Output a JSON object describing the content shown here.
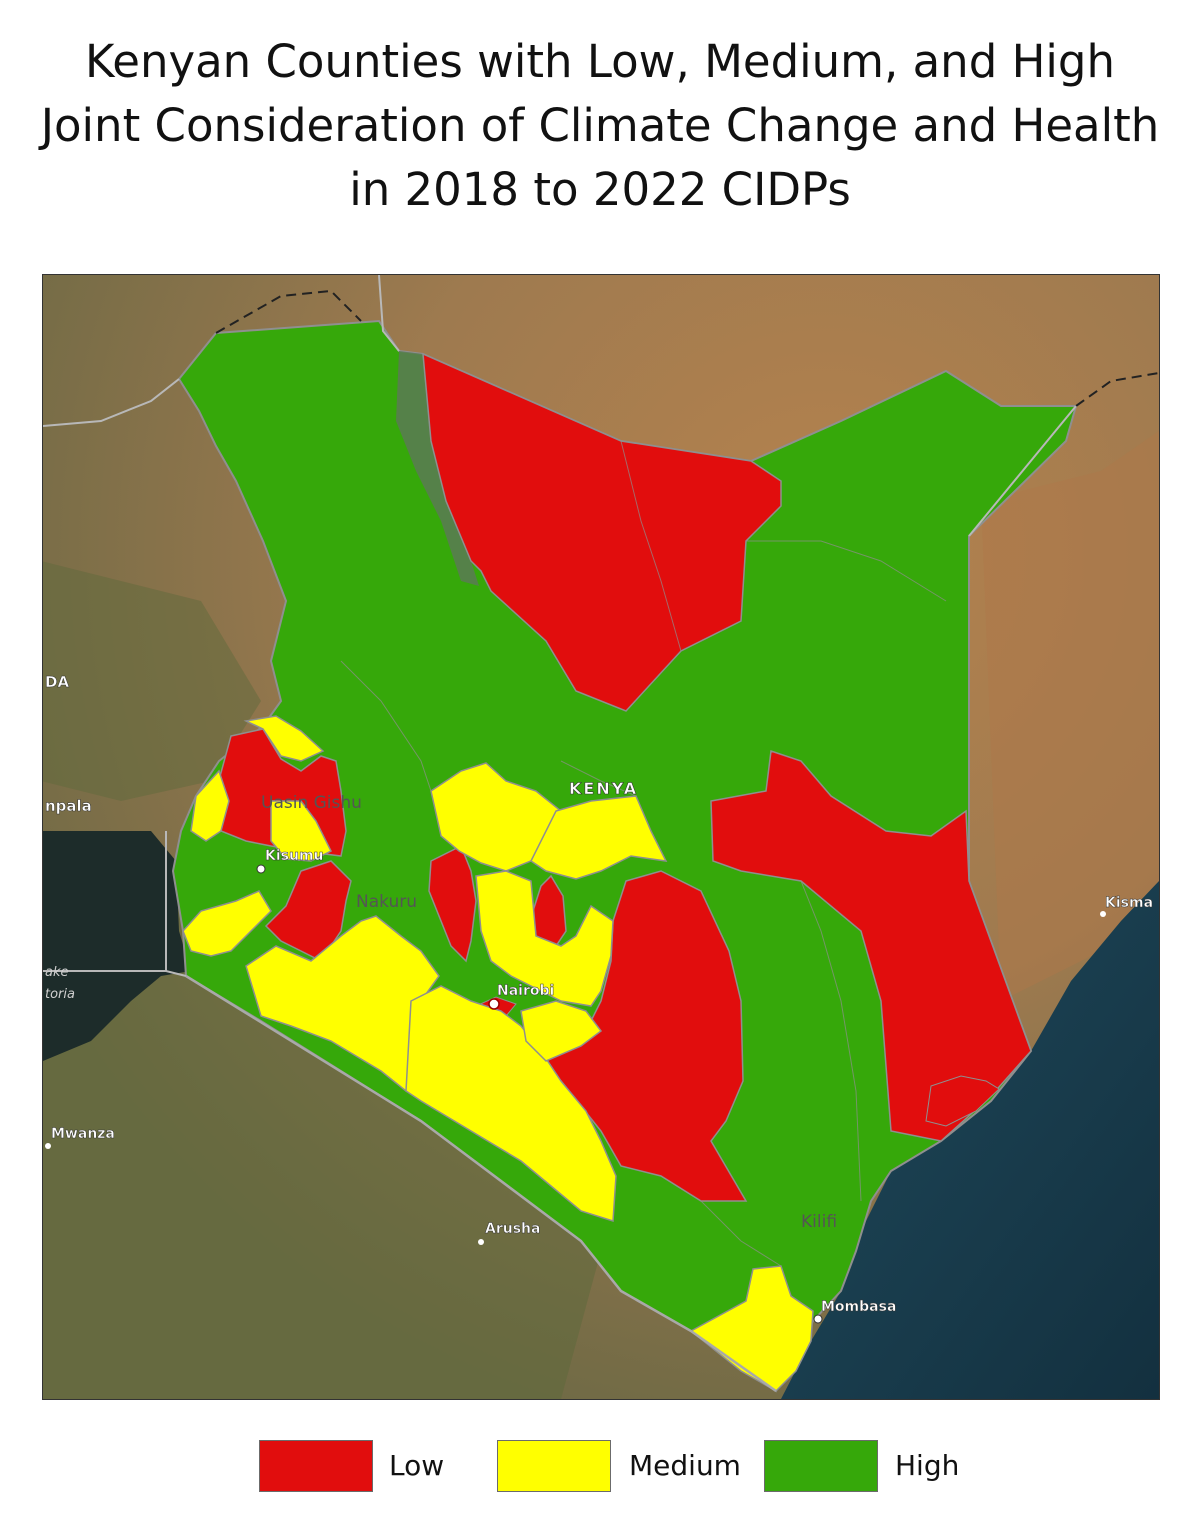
{
  "title": {
    "line1": "Kenyan Counties with Low, Medium, and High",
    "line2": "Joint Consideration of Climate Change and Health",
    "line3": "in 2018 to 2022 CIDPs"
  },
  "map": {
    "labels": {
      "kenya": "KENYA",
      "uasin_gishu": "Uasin Gishu",
      "kisumu": "Kisumu",
      "nakuru": "Nakuru",
      "nairobi": "Nairobi",
      "kilifi": "Kilifi",
      "mombasa": "Mombasa",
      "arusha": "Arusha",
      "mwanza": "Mwanza",
      "kismayo": "Kisma",
      "kampala": "npala",
      "uganda": "DA",
      "lake_victoria_1": "ake",
      "lake_victoria_2": "toria"
    },
    "colors": {
      "low": "#e10d0d",
      "medium": "#ffff00",
      "high": "#36a80a",
      "land": "#9b7b52",
      "ocean": "#18394a",
      "lake": "#1b2a2a"
    }
  },
  "legend": {
    "items": [
      {
        "label": "Low",
        "color": "#e10d0d"
      },
      {
        "label": "Medium",
        "color": "#ffff00"
      },
      {
        "label": "High",
        "color": "#36a80a"
      }
    ]
  }
}
